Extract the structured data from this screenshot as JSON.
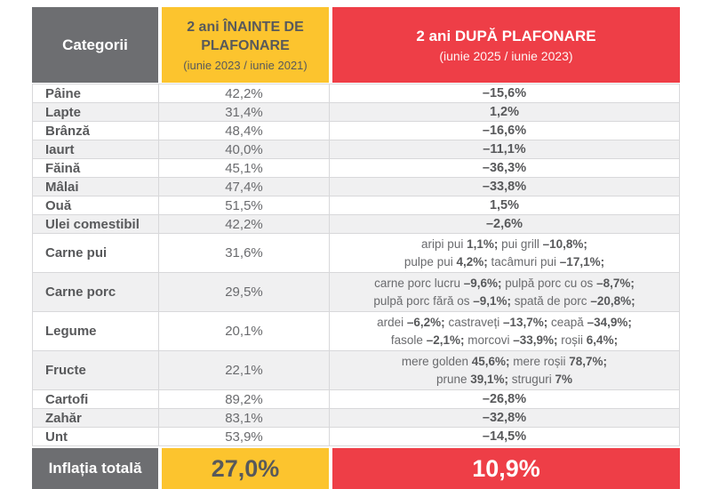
{
  "header": {
    "categories_label": "Categorii",
    "before_title": "2 ani ÎNAINTE DE PLAFONARE",
    "before_subtitle": "(iunie 2023 / iunie 2021)",
    "after_title": "2 ani DUPĂ PLAFONARE",
    "after_subtitle": "(iunie 2025 / iunie 2023)"
  },
  "chart_data": {
    "type": "table",
    "columns": [
      "Categorii",
      "2 ani ÎNAINTE DE PLAFONARE (iunie 2023 / iunie 2021)",
      "2 ani DUPĂ PLAFONARE (iunie 2025 / iunie 2023)"
    ],
    "rows": [
      {
        "category": "Pâine",
        "before": "42,2%",
        "after": "–15,6%"
      },
      {
        "category": "Lapte",
        "before": "31,4%",
        "after": "1,2%"
      },
      {
        "category": "Brânză",
        "before": "48,4%",
        "after": "–16,6%"
      },
      {
        "category": "Iaurt",
        "before": "40,0%",
        "after": "–11,1%"
      },
      {
        "category": "Făină",
        "before": "45,1%",
        "after": "–36,3%"
      },
      {
        "category": "Mâlai",
        "before": "47,4%",
        "after": "–33,8%"
      },
      {
        "category": "Ouă",
        "before": "51,5%",
        "after": "1,5%"
      },
      {
        "category": "Ulei comestibil",
        "before": "42,2%",
        "after": "–2,6%"
      },
      {
        "category": "Carne pui",
        "before": "31,6%",
        "after_lines": [
          [
            {
              "t": "aripi pui ",
              "b": false
            },
            {
              "t": "1,1%;",
              "b": true
            },
            {
              "t": " pui grill ",
              "b": false
            },
            {
              "t": "–10,8%;",
              "b": true
            }
          ],
          [
            {
              "t": "pulpe pui ",
              "b": false
            },
            {
              "t": "4,2%;",
              "b": true
            },
            {
              "t": " tacâmuri pui ",
              "b": false
            },
            {
              "t": "–17,1%;",
              "b": true
            }
          ]
        ]
      },
      {
        "category": "Carne porc",
        "before": "29,5%",
        "after_lines": [
          [
            {
              "t": "carne porc lucru ",
              "b": false
            },
            {
              "t": "–9,6%;",
              "b": true
            },
            {
              "t": " pulpă porc cu os ",
              "b": false
            },
            {
              "t": "–8,7%;",
              "b": true
            }
          ],
          [
            {
              "t": "pulpă porc fără os ",
              "b": false
            },
            {
              "t": "–9,1%;",
              "b": true
            },
            {
              "t": " spată de porc ",
              "b": false
            },
            {
              "t": "–20,8%;",
              "b": true
            }
          ]
        ]
      },
      {
        "category": "Legume",
        "before": "20,1%",
        "after_lines": [
          [
            {
              "t": "ardei ",
              "b": false
            },
            {
              "t": "–6,2%;",
              "b": true
            },
            {
              "t": " castraveți ",
              "b": false
            },
            {
              "t": "–13,7%;",
              "b": true
            },
            {
              "t": " ceapă ",
              "b": false
            },
            {
              "t": "–34,9%;",
              "b": true
            }
          ],
          [
            {
              "t": "fasole ",
              "b": false
            },
            {
              "t": "–2,1%;",
              "b": true
            },
            {
              "t": " morcovi ",
              "b": false
            },
            {
              "t": "–33,9%;",
              "b": true
            },
            {
              "t": " roșii ",
              "b": false
            },
            {
              "t": "6,4%;",
              "b": true
            }
          ]
        ]
      },
      {
        "category": "Fructe",
        "before": "22,1%",
        "after_lines": [
          [
            {
              "t": "mere golden ",
              "b": false
            },
            {
              "t": "45,6%;",
              "b": true
            },
            {
              "t": " mere roșii ",
              "b": false
            },
            {
              "t": "78,7%;",
              "b": true
            }
          ],
          [
            {
              "t": "prune ",
              "b": false
            },
            {
              "t": "39,1%;",
              "b": true
            },
            {
              "t": " struguri ",
              "b": false
            },
            {
              "t": "7%",
              "b": true
            }
          ]
        ]
      },
      {
        "category": "Cartofi",
        "before": "89,2%",
        "after": "–26,8%"
      },
      {
        "category": "Zahăr",
        "before": "83,1%",
        "after": "–32,8%"
      },
      {
        "category": "Unt",
        "before": "53,9%",
        "after": "–14,5%"
      }
    ],
    "footer": {
      "label": "Inflația totală",
      "before": "27,0%",
      "after": "10,9%"
    }
  },
  "colors": {
    "header_gray": "#6d6e71",
    "before_yellow": "#fcc42e",
    "after_red": "#ee3e47",
    "zebra": "#f0f0f1",
    "border": "#d8d8da",
    "text_dark": "#58595b",
    "text_mid": "#6a6b6e"
  }
}
